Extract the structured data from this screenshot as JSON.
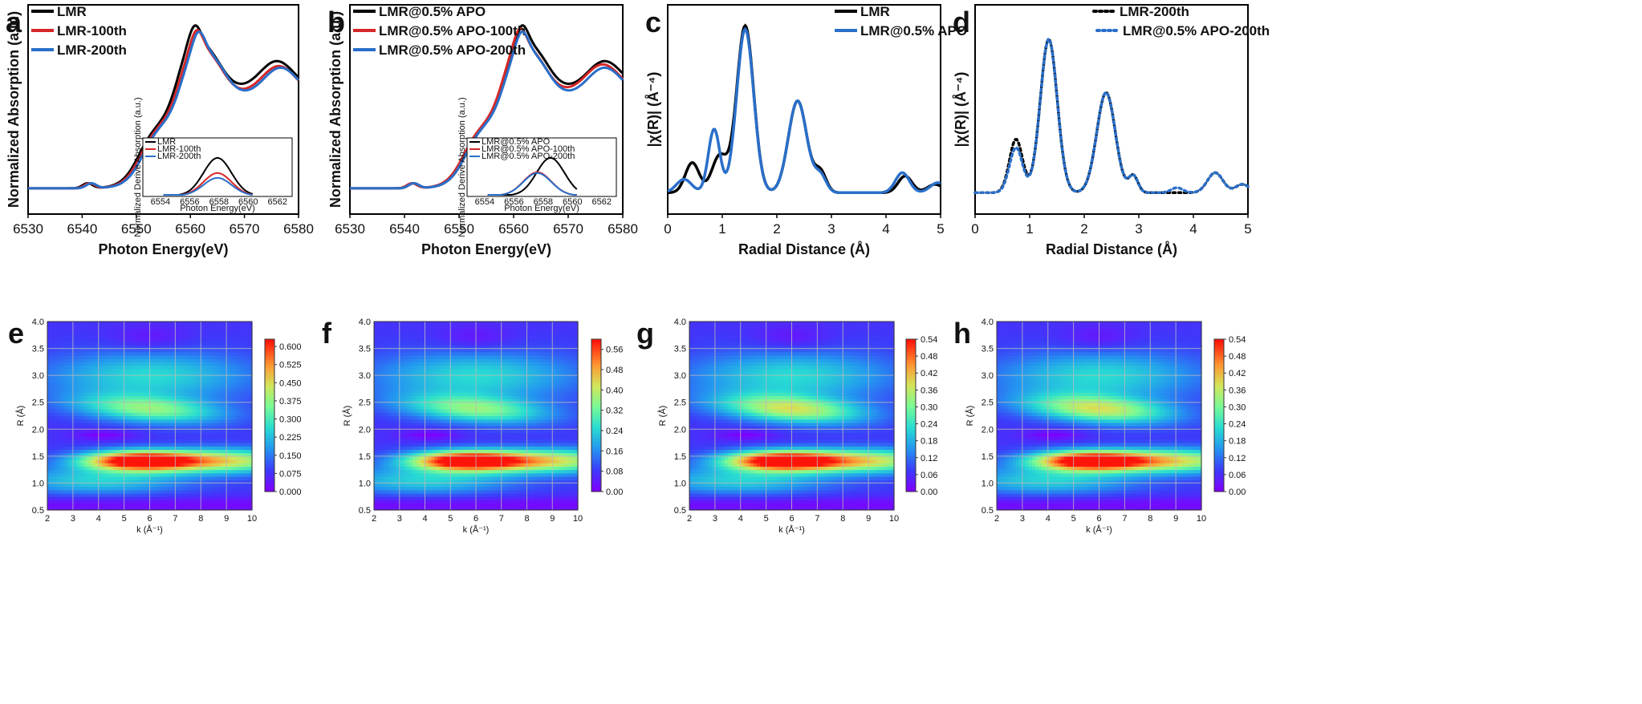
{
  "panels_top": [
    {
      "label": "a",
      "type": "line",
      "xlabel": "Photon Energy(eV)",
      "ylabel": "Normalized Absorption (a.u.)",
      "xlim": [
        6530,
        6580
      ],
      "xticks": [
        6530,
        6540,
        6550,
        6560,
        6570,
        6580
      ],
      "series": [
        {
          "name": "LMR",
          "color": "#000000",
          "peak": 0.96,
          "dashed": false
        },
        {
          "name": "LMR-100th",
          "color": "#d62828",
          "peak": 0.93,
          "dashed": false
        },
        {
          "name": "LMR-200th",
          "color": "#2a6fc9",
          "peak": 0.92,
          "dashed": false
        }
      ],
      "inset": {
        "xlabel": "Photon Energy(eV)",
        "ylabel": "Normalized Derive Absorption (a.u.)",
        "xticks": [
          6554,
          6556,
          6558,
          6560,
          6562
        ],
        "legend": [
          "LMR",
          "LMR-100th",
          "LMR-200th"
        ],
        "peaks": [
          1.0,
          0.6,
          0.47
        ]
      }
    },
    {
      "label": "b",
      "type": "line",
      "xlabel": "Photon Energy(eV)",
      "ylabel": "Normalized Absorption (a.u.)",
      "xlim": [
        6530,
        6580
      ],
      "xticks": [
        6530,
        6540,
        6550,
        6560,
        6570,
        6580
      ],
      "series": [
        {
          "name": "LMR@0.5% APO",
          "color": "#000000",
          "peak": 0.96,
          "dashed": false
        },
        {
          "name": "LMR@0.5% APO-100th",
          "color": "#d62828",
          "peak": 0.94,
          "dashed": false
        },
        {
          "name": "LMR@0.5% APO-200th",
          "color": "#2a6fc9",
          "peak": 0.92,
          "dashed": false
        }
      ],
      "inset": {
        "xlabel": "Photon Energy(eV)",
        "ylabel": "Normalized Derive Absorption (a.u.)",
        "xticks": [
          6554,
          6556,
          6558,
          6560,
          6562
        ],
        "legend": [
          "LMR@0.5% APO",
          "LMR@0.5% APO-100th",
          "LMR@0.5% APO-200th"
        ],
        "peaks": [
          1.0,
          0.62,
          0.6
        ]
      }
    },
    {
      "label": "c",
      "type": "line",
      "xlabel": "Radial Distance (Å)",
      "ylabel": "|χ(R)| (Å⁻⁴)",
      "xlim": [
        0,
        5
      ],
      "xticks": [
        0,
        1,
        2,
        3,
        4,
        5
      ],
      "series": [
        {
          "name": "LMR",
          "color": "#000000",
          "dashed": false
        },
        {
          "name": "LMR@0.5% APO",
          "color": "#2a6fc9",
          "dashed": false
        }
      ]
    },
    {
      "label": "d",
      "type": "line",
      "xlabel": "Radial Distance (Å)",
      "ylabel": "|χ(R)| (Å⁻⁴)",
      "xlim": [
        0,
        5
      ],
      "xticks": [
        0,
        1,
        2,
        3,
        4,
        5
      ],
      "series": [
        {
          "name": "LMR-200th",
          "color": "#000000",
          "dashed": true
        },
        {
          "name": "LMR@0.5% APO-200th",
          "color": "#2a6fc9",
          "dashed": true
        }
      ]
    }
  ],
  "panels_bottom": [
    {
      "label": "e",
      "type": "heatmap",
      "xlabel": "k (Å⁻¹)",
      "ylabel": "R (Å)",
      "xticks": [
        2,
        3,
        4,
        5,
        6,
        7,
        8,
        9,
        10
      ],
      "yticks": [
        "0.5",
        "1.0",
        "1.5",
        "2.0",
        "2.5",
        "3.0",
        "3.5",
        "4.0"
      ],
      "colorbar_ticks": [
        "0.000",
        "0.075",
        "0.150",
        "0.225",
        "0.300",
        "0.375",
        "0.450",
        "0.525",
        "0.600"
      ],
      "cmax": 0.63
    },
    {
      "label": "f",
      "type": "heatmap",
      "xlabel": "k (Å⁻¹)",
      "ylabel": "R (Å)",
      "xticks": [
        2,
        3,
        4,
        5,
        6,
        7,
        8,
        9,
        10
      ],
      "yticks": [
        "0.5",
        "1.0",
        "1.5",
        "2.0",
        "2.5",
        "3.0",
        "3.5",
        "4.0"
      ],
      "colorbar_ticks": [
        "0.00",
        "0.08",
        "0.16",
        "0.24",
        "0.32",
        "0.40",
        "0.48",
        "0.56"
      ],
      "cmax": 0.6
    },
    {
      "label": "g",
      "type": "heatmap",
      "xlabel": "k (Å⁻¹)",
      "ylabel": "R (Å)",
      "xticks": [
        2,
        3,
        4,
        5,
        6,
        7,
        8,
        9,
        10
      ],
      "yticks": [
        "0.5",
        "1.0",
        "1.5",
        "2.0",
        "2.5",
        "3.0",
        "3.5",
        "4.0"
      ],
      "colorbar_ticks": [
        "0.00",
        "0.06",
        "0.12",
        "0.18",
        "0.24",
        "0.30",
        "0.36",
        "0.42",
        "0.48",
        "0.54"
      ],
      "cmax": 0.54
    },
    {
      "label": "h",
      "type": "heatmap",
      "xlabel": "k (Å⁻¹)",
      "ylabel": "R (Å)",
      "xticks": [
        2,
        3,
        4,
        5,
        6,
        7,
        8,
        9,
        10
      ],
      "yticks": [
        "0.5",
        "1.0",
        "1.5",
        "2.0",
        "2.5",
        "3.0",
        "3.5",
        "4.0"
      ],
      "colorbar_ticks": [
        "0.00",
        "0.06",
        "0.12",
        "0.18",
        "0.24",
        "0.30",
        "0.36",
        "0.42",
        "0.48",
        "0.54"
      ],
      "cmax": 0.54
    }
  ]
}
